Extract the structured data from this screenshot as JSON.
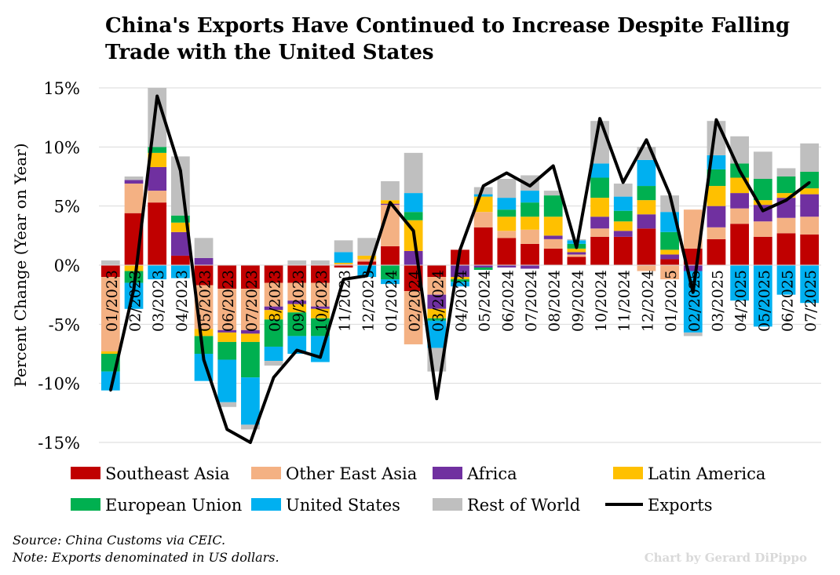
{
  "title_lines": [
    "China's Exports Have Continued to Increase Despite Falling",
    "Trade with the United States"
  ],
  "source": "Source: China Customs via CEIC.",
  "note": "Note: Exports denominated in US dollars.",
  "credit": "Chart by Gerard DiPippo",
  "colors": {
    "Southeast Asia": "#c00000",
    "Other East Asia": "#f4b183",
    "Africa": "#7030a0",
    "Latin America": "#ffc000",
    "European Union": "#00b050",
    "United States": "#00b0f0",
    "Rest of World": "#bfbfbf",
    "Exports": "#000000"
  },
  "chart_data": {
    "type": "bar",
    "stacked": true,
    "ylabel": "Percent Change (Year on Year)",
    "ylim": [
      -15,
      15
    ],
    "yticks": [
      15,
      10,
      5,
      0,
      -5,
      -10,
      -15
    ],
    "ytick_labels": [
      "15%",
      "10%",
      "5%",
      "0%",
      "-5%",
      "-10%",
      "-15%"
    ],
    "grid": true,
    "legend": "bottom",
    "categories": [
      "01/2023",
      "02/2023",
      "03/2023",
      "04/2023",
      "05/2023",
      "06/2023",
      "07/2023",
      "08/2023",
      "09/2023",
      "10/2023",
      "11/2023",
      "12/2023",
      "01/2024",
      "02/2024",
      "03/2024",
      "04/2024",
      "05/2024",
      "06/2024",
      "07/2024",
      "08/2024",
      "09/2024",
      "10/2024",
      "11/2024",
      "12/2024",
      "01/2025",
      "02/2025",
      "03/2025",
      "04/2025",
      "05/2025",
      "06/2025",
      "07/2025"
    ],
    "series": [
      {
        "name": "Southeast Asia",
        "values": [
          -1.0,
          4.4,
          5.3,
          0.8,
          -1.7,
          -2.0,
          -2.0,
          -1.5,
          -1.5,
          -1.5,
          -0.2,
          0.3,
          1.6,
          -2.2,
          -1.0,
          1.3,
          3.2,
          2.3,
          1.8,
          1.4,
          0.7,
          2.4,
          2.4,
          3.1,
          0.5,
          1.4,
          2.2,
          3.5,
          2.4,
          2.7,
          2.6
        ]
      },
      {
        "name": "Other East Asia",
        "values": [
          -6.3,
          2.5,
          1.0,
          0.0,
          -3.7,
          -3.5,
          -3.5,
          -2.0,
          -1.5,
          -2.0,
          0.1,
          0.2,
          3.5,
          -4.5,
          -1.5,
          0.0,
          1.3,
          0.6,
          1.2,
          0.8,
          0.2,
          0.7,
          0.0,
          -0.5,
          -1.2,
          3.3,
          1.0,
          1.3,
          1.3,
          1.3,
          1.5
        ]
      },
      {
        "name": "Africa",
        "values": [
          0.0,
          0.3,
          2.0,
          2.0,
          0.6,
          -0.2,
          -0.3,
          -0.3,
          -0.3,
          -0.2,
          0.0,
          0.0,
          0.1,
          1.2,
          -1.2,
          -1.0,
          -0.2,
          -0.2,
          -0.3,
          0.3,
          0.2,
          1.0,
          0.5,
          1.2,
          0.4,
          -0.5,
          1.8,
          1.3,
          1.4,
          1.7,
          1.9
        ]
      },
      {
        "name": "Latin America",
        "values": [
          -0.2,
          -0.5,
          1.2,
          0.8,
          -0.6,
          -0.8,
          -0.7,
          -0.8,
          -0.7,
          -0.8,
          0.1,
          0.3,
          0.3,
          2.6,
          -0.8,
          -0.2,
          1.3,
          1.2,
          1.1,
          1.6,
          0.3,
          1.6,
          0.8,
          1.2,
          0.4,
          0.0,
          1.7,
          1.3,
          0.4,
          0.4,
          0.5
        ]
      },
      {
        "name": "European Union",
        "values": [
          -1.5,
          -1.0,
          0.5,
          0.6,
          -1.5,
          -1.5,
          -3.0,
          -2.3,
          -2.0,
          -1.5,
          0.0,
          0.0,
          -1.2,
          0.7,
          -0.2,
          -0.2,
          -0.2,
          0.6,
          1.2,
          1.8,
          0.4,
          1.7,
          0.9,
          1.2,
          1.5,
          0.0,
          1.4,
          1.2,
          1.8,
          1.4,
          1.4
        ]
      },
      {
        "name": "United States",
        "values": [
          -1.6,
          -2.2,
          -1.2,
          -1.1,
          -2.3,
          -3.6,
          -4.0,
          -1.2,
          -1.5,
          -2.2,
          0.9,
          -1.0,
          -0.4,
          1.6,
          -2.3,
          -0.4,
          0.2,
          1.0,
          1.0,
          0.0,
          0.3,
          1.2,
          1.2,
          2.2,
          1.7,
          -5.2,
          1.2,
          -3.0,
          -5.2,
          -2.5,
          -3.2
        ]
      },
      {
        "name": "Rest of World",
        "values": [
          0.4,
          0.3,
          5.0,
          5.0,
          1.7,
          -0.4,
          -0.4,
          -0.4,
          0.4,
          0.4,
          1.0,
          1.5,
          1.6,
          3.4,
          -2.0,
          0.0,
          0.6,
          1.6,
          1.3,
          0.4,
          0.1,
          3.6,
          1.1,
          1.1,
          1.4,
          -0.3,
          2.9,
          2.3,
          2.3,
          0.7,
          2.4
        ]
      },
      {
        "name": "Exports",
        "type": "line",
        "values": [
          -10.6,
          -2.0,
          14.3,
          8.0,
          -8.0,
          -13.9,
          -15.0,
          -9.5,
          -7.2,
          -7.8,
          -1.2,
          -0.9,
          5.3,
          2.9,
          -11.3,
          1.3,
          6.7,
          7.8,
          6.7,
          8.4,
          1.5,
          12.4,
          7.0,
          10.6,
          6.0,
          -2.3,
          12.3,
          8.0,
          4.6,
          5.5,
          7.0
        ]
      }
    ]
  }
}
